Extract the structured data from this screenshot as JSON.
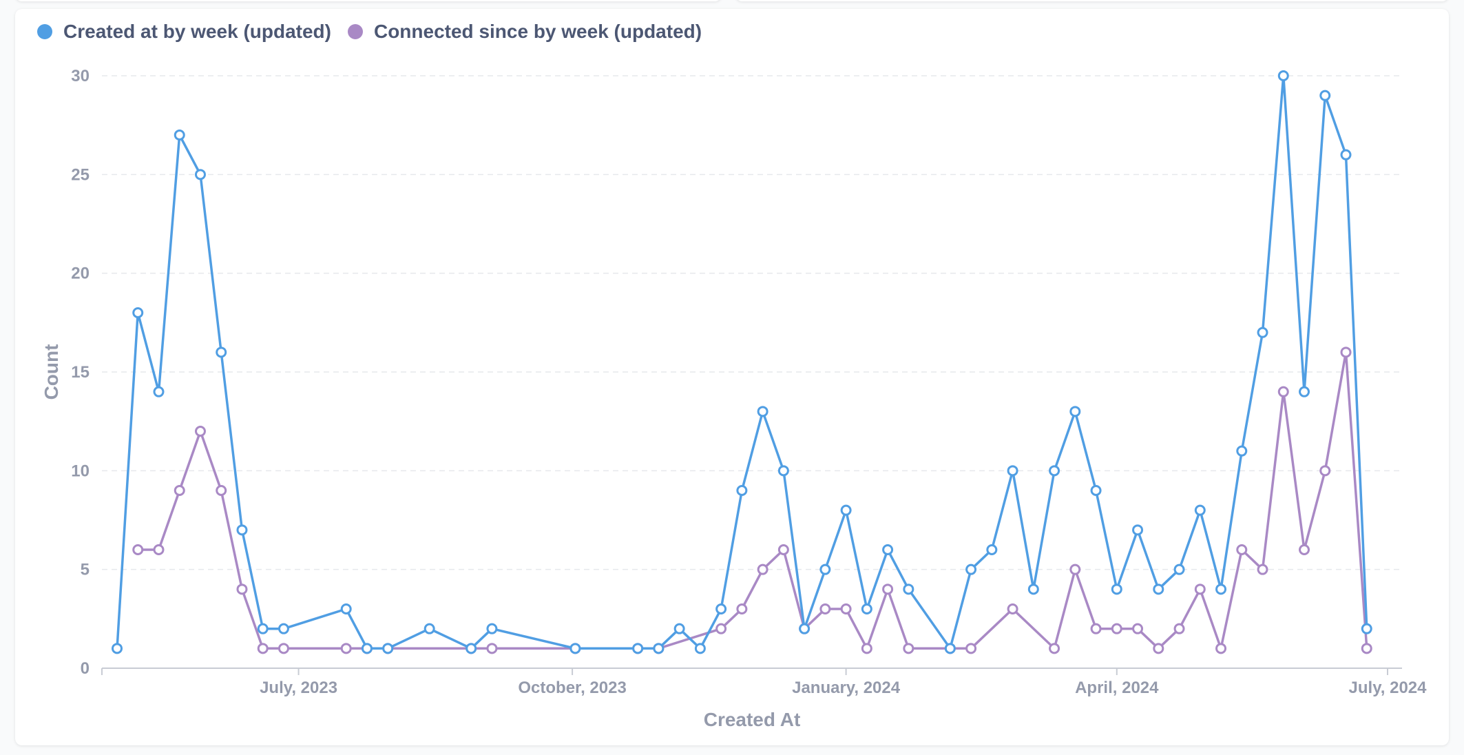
{
  "chart_data": {
    "type": "line",
    "xlabel": "Created At",
    "ylabel": "Count",
    "ylim": [
      0,
      30
    ],
    "yticks": [
      "0",
      "5",
      "10",
      "15",
      "20",
      "25",
      "30"
    ],
    "xlim": [
      "2023-05-01",
      "2024-07-01"
    ],
    "xticks": [
      {
        "date": "2023-07-01",
        "label": "July, 2023"
      },
      {
        "date": "2023-10-01",
        "label": "October, 2023"
      },
      {
        "date": "2024-01-01",
        "label": "January, 2024"
      },
      {
        "date": "2024-04-01",
        "label": "April, 2024"
      },
      {
        "date": "2024-07-01",
        "label": "July, 2024"
      }
    ],
    "grid": "horizontal dashed",
    "legend_position": "top-left",
    "series": [
      {
        "name": "Created at by week (updated)",
        "color": "#509ee3",
        "points": [
          [
            "2023-05-01",
            1
          ],
          [
            "2023-05-08",
            18
          ],
          [
            "2023-05-15",
            14
          ],
          [
            "2023-05-22",
            27
          ],
          [
            "2023-05-29",
            25
          ],
          [
            "2023-06-05",
            16
          ],
          [
            "2023-06-12",
            7
          ],
          [
            "2023-06-19",
            2
          ],
          [
            "2023-06-26",
            2
          ],
          [
            "2023-07-17",
            3
          ],
          [
            "2023-07-24",
            1
          ],
          [
            "2023-07-31",
            1
          ],
          [
            "2023-08-14",
            2
          ],
          [
            "2023-08-28",
            1
          ],
          [
            "2023-09-04",
            2
          ],
          [
            "2023-10-02",
            1
          ],
          [
            "2023-10-23",
            1
          ],
          [
            "2023-10-30",
            1
          ],
          [
            "2023-11-06",
            2
          ],
          [
            "2023-11-13",
            1
          ],
          [
            "2023-11-20",
            3
          ],
          [
            "2023-11-27",
            9
          ],
          [
            "2023-12-04",
            13
          ],
          [
            "2023-12-11",
            10
          ],
          [
            "2023-12-18",
            2
          ],
          [
            "2023-12-25",
            5
          ],
          [
            "2024-01-01",
            8
          ],
          [
            "2024-01-08",
            3
          ],
          [
            "2024-01-15",
            6
          ],
          [
            "2024-01-22",
            4
          ],
          [
            "2024-02-05",
            1
          ],
          [
            "2024-02-12",
            5
          ],
          [
            "2024-02-19",
            6
          ],
          [
            "2024-02-26",
            10
          ],
          [
            "2024-03-04",
            4
          ],
          [
            "2024-03-11",
            10
          ],
          [
            "2024-03-18",
            13
          ],
          [
            "2024-03-25",
            9
          ],
          [
            "2024-04-01",
            4
          ],
          [
            "2024-04-08",
            7
          ],
          [
            "2024-04-15",
            4
          ],
          [
            "2024-04-22",
            5
          ],
          [
            "2024-04-29",
            8
          ],
          [
            "2024-05-06",
            4
          ],
          [
            "2024-05-13",
            11
          ],
          [
            "2024-05-20",
            17
          ],
          [
            "2024-05-27",
            30
          ],
          [
            "2024-06-03",
            14
          ],
          [
            "2024-06-10",
            29
          ],
          [
            "2024-06-17",
            26
          ],
          [
            "2024-06-24",
            2
          ]
        ]
      },
      {
        "name": "Connected since by week (updated)",
        "color": "#a989c5",
        "points": [
          [
            "2023-05-08",
            6
          ],
          [
            "2023-05-15",
            6
          ],
          [
            "2023-05-22",
            9
          ],
          [
            "2023-05-29",
            12
          ],
          [
            "2023-06-05",
            9
          ],
          [
            "2023-06-12",
            4
          ],
          [
            "2023-06-19",
            1
          ],
          [
            "2023-06-26",
            1
          ],
          [
            "2023-07-17",
            1
          ],
          [
            "2023-07-24",
            1
          ],
          [
            "2023-07-31",
            1
          ],
          [
            "2023-08-28",
            1
          ],
          [
            "2023-09-04",
            1
          ],
          [
            "2023-10-02",
            1
          ],
          [
            "2023-10-23",
            1
          ],
          [
            "2023-10-30",
            1
          ],
          [
            "2023-11-20",
            2
          ],
          [
            "2023-11-27",
            3
          ],
          [
            "2023-12-04",
            5
          ],
          [
            "2023-12-11",
            6
          ],
          [
            "2023-12-18",
            2
          ],
          [
            "2023-12-25",
            3
          ],
          [
            "2024-01-01",
            3
          ],
          [
            "2024-01-08",
            1
          ],
          [
            "2024-01-15",
            4
          ],
          [
            "2024-01-22",
            1
          ],
          [
            "2024-02-05",
            1
          ],
          [
            "2024-02-12",
            1
          ],
          [
            "2024-02-26",
            3
          ],
          [
            "2024-03-11",
            1
          ],
          [
            "2024-03-18",
            5
          ],
          [
            "2024-03-25",
            2
          ],
          [
            "2024-04-01",
            2
          ],
          [
            "2024-04-08",
            2
          ],
          [
            "2024-04-15",
            1
          ],
          [
            "2024-04-22",
            2
          ],
          [
            "2024-04-29",
            4
          ],
          [
            "2024-05-06",
            1
          ],
          [
            "2024-05-13",
            6
          ],
          [
            "2024-05-20",
            5
          ],
          [
            "2024-05-27",
            14
          ],
          [
            "2024-06-03",
            6
          ],
          [
            "2024-06-10",
            10
          ],
          [
            "2024-06-17",
            16
          ],
          [
            "2024-06-24",
            1
          ]
        ]
      }
    ]
  }
}
